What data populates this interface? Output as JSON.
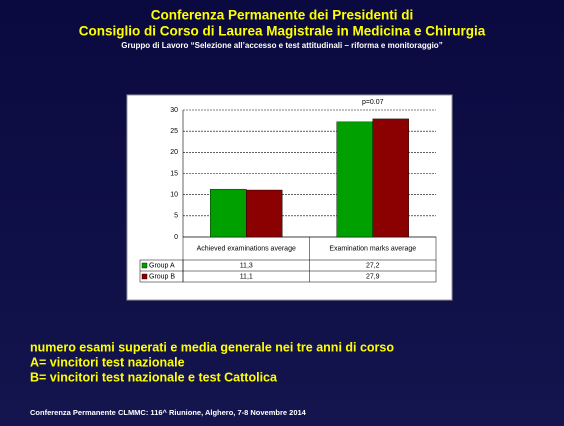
{
  "header": {
    "title_line1": "Conferenza Permanente dei Presidenti di",
    "title_line2": "Consiglio di Corso di Laurea Magistrale in Medicina e Chirurgia",
    "subtitle": "Gruppo di Lavoro “Selezione all’accesso e test attitudinali – riforma e monitoraggio”"
  },
  "chart_data": {
    "type": "bar",
    "categories": [
      "Achieved examinations average",
      "Examination marks average"
    ],
    "series": [
      {
        "name": "Group A",
        "color": "#00a000",
        "values": [
          11.3,
          27.2
        ],
        "value_labels": [
          "11,3",
          "27,2"
        ]
      },
      {
        "name": "Group B",
        "color": "#8b0000",
        "values": [
          11.1,
          27.9
        ],
        "value_labels": [
          "11,1",
          "27,9"
        ]
      }
    ],
    "ylim": [
      0,
      30
    ],
    "yticks": [
      0,
      5,
      10,
      15,
      20,
      25,
      30
    ],
    "grid": true,
    "annotation": "p=0.07"
  },
  "caption": {
    "line1": "numero esami superati e media generale nei tre anni di corso",
    "line2": "A= vincitori test nazionale",
    "line3": "B= vincitori test nazionale e test Cattolica"
  },
  "footer": "Conferenza Permanente CLMMC: 116^ Riunione,  Alghero, 7-8 Novembre 2014"
}
